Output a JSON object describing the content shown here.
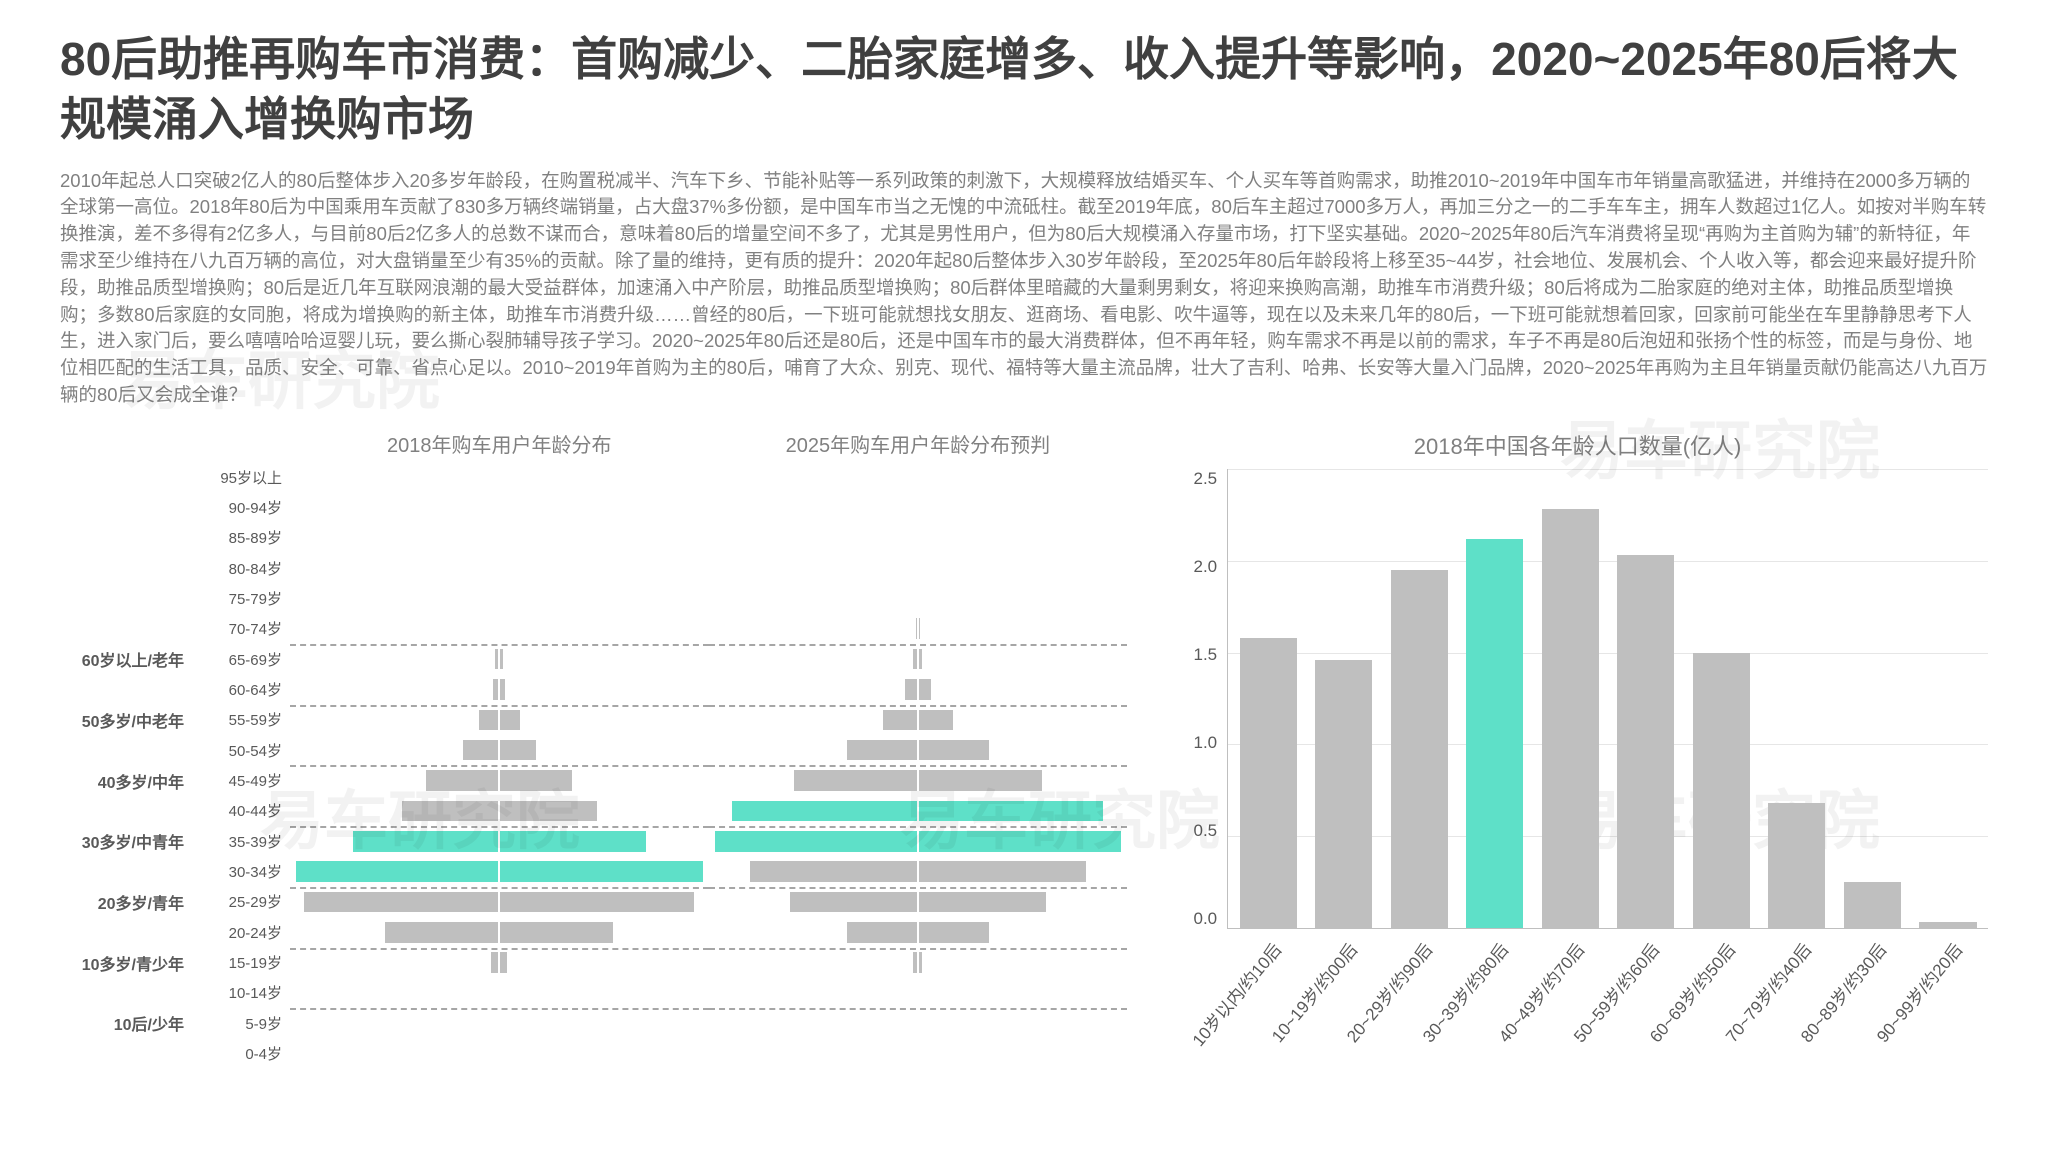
{
  "title": "80后助推再购车市消费：首购减少、二胎家庭增多、收入提升等影响，2020~2025年80后将大规模涌入增换购市场",
  "body_text": "2010年起总人口突破2亿人的80后整体步入20多岁年龄段，在购置税减半、汽车下乡、节能补贴等一系列政策的刺激下，大规模释放结婚买车、个人买车等首购需求，助推2010~2019年中国车市年销量高歌猛进，并维持在2000多万辆的全球第一高位。2018年80后为中国乘用车贡献了830多万辆终端销量，占大盘37%多份额，是中国车市当之无愧的中流砥柱。截至2019年底，80后车主超过7000多万人，再加三分之一的二手车车主，拥车人数超过1亿人。如按对半购车转换推演，差不多得有2亿多人，与目前80后2亿多人的总数不谋而合，意味着80后的增量空间不多了，尤其是男性用户，但为80后大规模涌入存量市场，打下坚实基础。2020~2025年80后汽车消费将呈现“再购为主首购为辅”的新特征，年需求至少维持在八九百万辆的高位，对大盘销量至少有35%的贡献。除了量的维持，更有质的提升：2020年起80后整体步入30岁年龄段，至2025年80后年龄段将上移至35~44岁，社会地位、发展机会、个人收入等，都会迎来最好提升阶段，助推品质型增换购；80后是近几年互联网浪潮的最大受益群体，加速涌入中产阶层，助推品质型增换购；80后群体里暗藏的大量剩男剩女，将迎来换购高潮，助推车市消费升级；80后将成为二胎家庭的绝对主体，助推品质型增换购；多数80后家庭的女同胞，将成为增换购的新主体，助推车市消费升级……曾经的80后，一下班可能就想找女朋友、逛商场、看电影、吹牛逼等，现在以及未来几年的80后，一下班可能就想着回家，回家前可能坐在车里静静思考下人生，进入家门后，要么嘻嘻哈哈逗婴儿玩，要么撕心裂肺辅导孩子学习。2020~2025年80后还是80后，还是中国车市的最大消费群体，但不再年轻，购车需求不再是以前的需求，车子不再是80后泡妞和张扬个性的标签，而是与身份、地位相匹配的生活工具，品质、安全、可靠、省点心足以。2010~2019年首购为主的80后，哺育了大众、别克、现代、福特等大量主流品牌，壮大了吉利、哈弗、长安等大量入门品牌，2020~2025年再购为主且年销量贡献仍能高达八九百万辆的80后又会成全谁？",
  "text_color_body": "#808080",
  "text_color_title": "#404040",
  "pyramid": {
    "title_2018": "2018年购车用户年龄分布",
    "title_2025": "2025年购车用户年龄分布预判",
    "bins": [
      "95岁以上",
      "90-94岁",
      "85-89岁",
      "80-84岁",
      "75-79岁",
      "70-74岁",
      "65-69岁",
      "60-64岁",
      "55-59岁",
      "50-54岁",
      "45-49岁",
      "40-44岁",
      "35-39岁",
      "30-34岁",
      "25-29岁",
      "20-24岁",
      "15-19岁",
      "10-14岁",
      "5-9岁",
      "0-4岁"
    ],
    "group_labels": [
      {
        "label": "60岁以上/老年",
        "at_bin": 6
      },
      {
        "label": "50多岁/中老年",
        "at_bin": 8
      },
      {
        "label": "40多岁/中年",
        "at_bin": 10
      },
      {
        "label": "30多岁/中青年",
        "at_bin": 12
      },
      {
        "label": "20多岁/青年",
        "at_bin": 14
      },
      {
        "label": "10多岁/青少年",
        "at_bin": 16
      },
      {
        "label": "10后/少年",
        "at_bin": 18
      }
    ],
    "dash_separators_after_bin": [
      5,
      7,
      9,
      11,
      13,
      15,
      17
    ],
    "series_2018": [
      0,
      0,
      0,
      0,
      0,
      0,
      1,
      1.5,
      5,
      9,
      18,
      24,
      36,
      50,
      48,
      28,
      2,
      0,
      0,
      0
    ],
    "highlight_2018_bins": [
      12,
      13
    ],
    "series_2025": [
      0,
      0,
      0,
      0,
      0,
      0.5,
      1,
      3,
      8,
      16,
      28,
      42,
      46,
      38,
      29,
      16,
      1,
      0,
      0,
      0
    ],
    "highlight_2025_bins": [
      11,
      12
    ],
    "bar_color": "#bfbfbf",
    "highlight_color": "#5ee0c8",
    "max_half_width_pct": 50
  },
  "population_chart": {
    "title": "2018年中国各年龄人口数量(亿人)",
    "categories": [
      "10岁以内/约10后",
      "10~19岁/约00后",
      "20~29岁/约90后",
      "30~39岁/约80后",
      "40~49岁/约70后",
      "50~59岁/约60后",
      "60~69岁/约50后",
      "70~79岁/约40后",
      "80~89岁/约30后",
      "90~99岁/约20后"
    ],
    "values": [
      1.58,
      1.46,
      1.95,
      2.12,
      2.28,
      2.03,
      1.5,
      0.68,
      0.25,
      0.03
    ],
    "highlight_index": 3,
    "y_ticks": [
      "2.5",
      "2.0",
      "1.5",
      "1.0",
      "0.5",
      "0.0"
    ],
    "y_max": 2.5,
    "bar_color": "#bfbfbf",
    "highlight_color": "#5ee0c8",
    "grid_color": "#e6e6e6",
    "axis_color": "#bfbfbf",
    "label_fontsize": 17,
    "label_rotation_deg": -50
  },
  "watermark_text": "易车研究院"
}
